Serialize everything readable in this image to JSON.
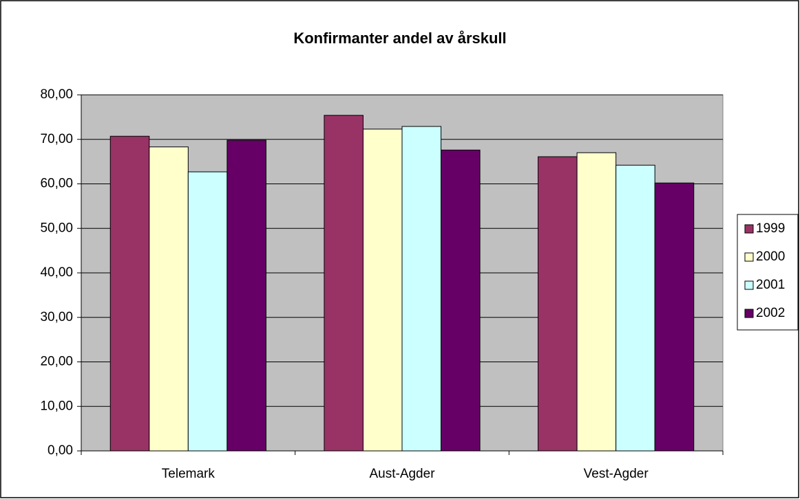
{
  "chart_data": {
    "type": "bar",
    "title": "Konfirmanter andel av årskull",
    "categories": [
      "Telemark",
      "Aust-Agder",
      "Vest-Agder"
    ],
    "series": [
      {
        "name": "1999",
        "color": "#993366",
        "values": [
          70.7,
          75.4,
          66.1
        ]
      },
      {
        "name": "2000",
        "color": "#ffffcc",
        "values": [
          68.3,
          72.3,
          67.0
        ]
      },
      {
        "name": "2001",
        "color": "#ccffff",
        "values": [
          62.7,
          72.9,
          64.2
        ]
      },
      {
        "name": "2002",
        "color": "#660066",
        "values": [
          69.8,
          67.6,
          60.2
        ]
      }
    ],
    "ylim": [
      0,
      80
    ],
    "yticks": [
      {
        "value": 0,
        "label": "0,00"
      },
      {
        "value": 10,
        "label": "10,00"
      },
      {
        "value": 20,
        "label": "20,00"
      },
      {
        "value": 30,
        "label": "30,00"
      },
      {
        "value": 40,
        "label": "40,00"
      },
      {
        "value": 50,
        "label": "50,00"
      },
      {
        "value": 60,
        "label": "60,00"
      },
      {
        "value": 70,
        "label": "70,00"
      },
      {
        "value": 80,
        "label": "80,00"
      }
    ],
    "grid": true,
    "legend": "right"
  }
}
